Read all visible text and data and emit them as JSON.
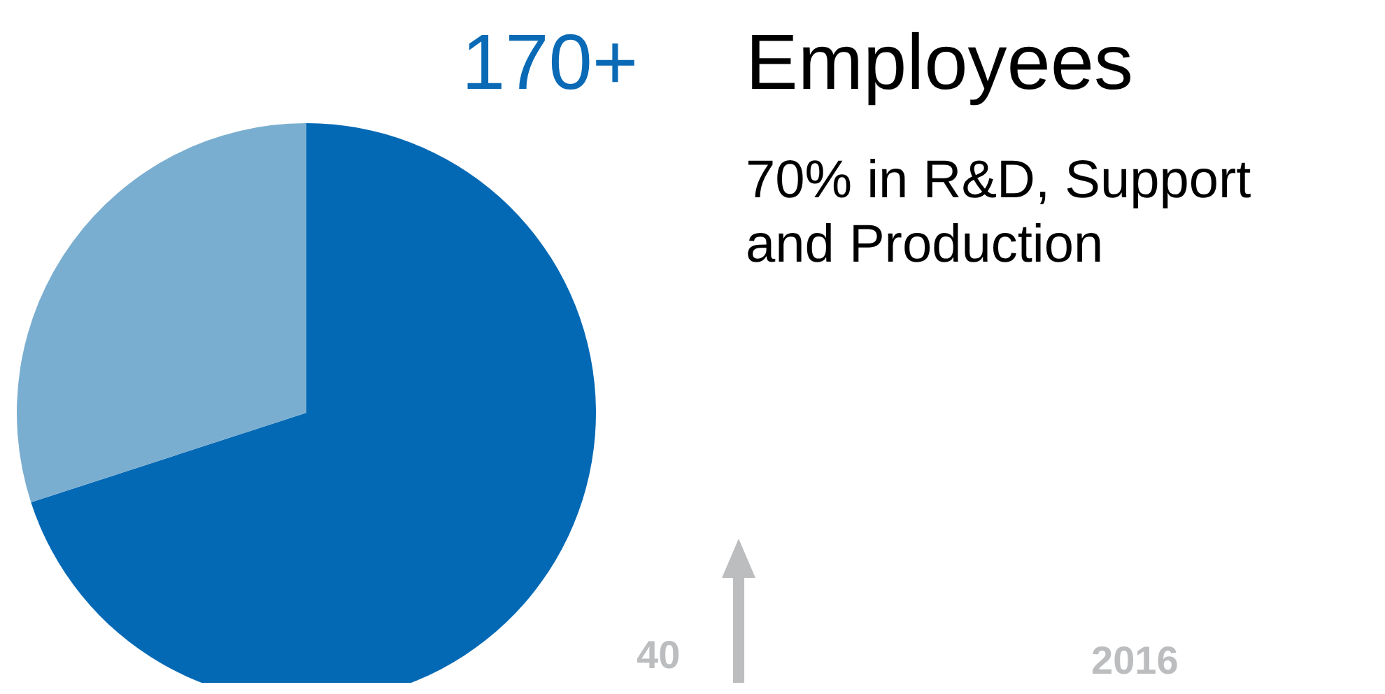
{
  "chart_data": {
    "type": "pie",
    "title": "170+ Employees",
    "subtitle": "70% in R&D, Support and Production",
    "categories": [
      null,
      null
    ],
    "values": [
      70,
      30
    ],
    "colors": [
      "#0369b5",
      "#7aaed0"
    ],
    "annotations": [
      "40",
      "2016"
    ]
  }
}
